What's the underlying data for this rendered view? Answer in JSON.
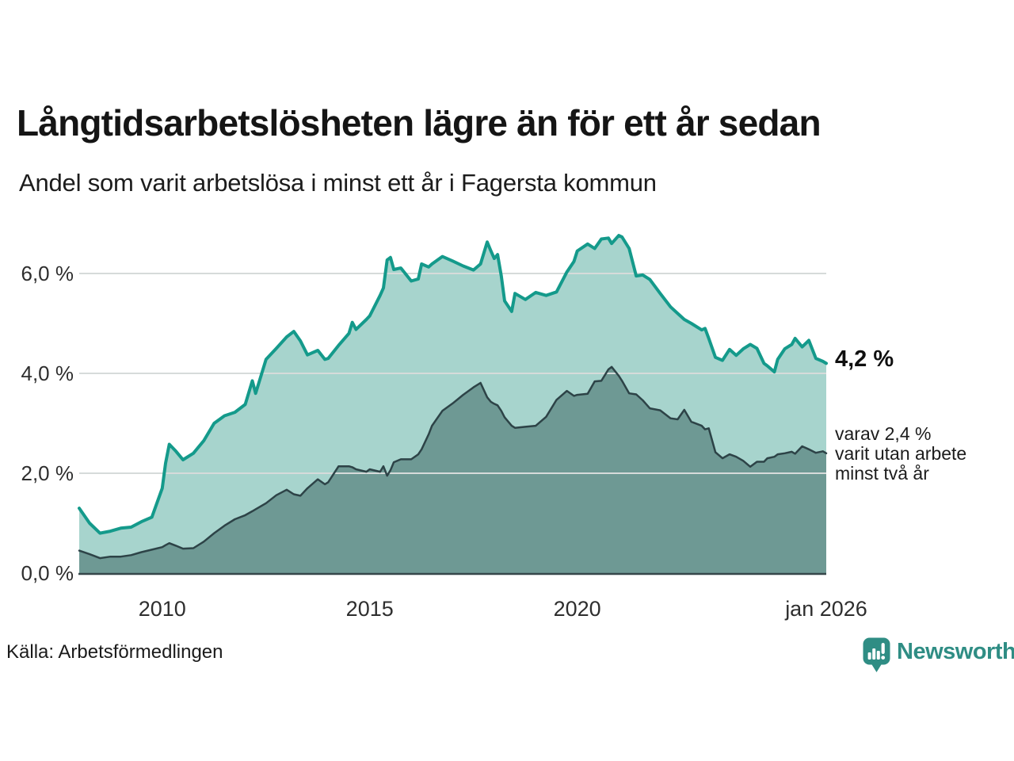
{
  "header": {
    "title": "Långtidsarbetslösheten lägre än för ett år sedan",
    "subtitle": "Andel som varit arbetslösa i minst ett år i Fagersta kommun"
  },
  "annotations": {
    "total_latest": "4,2 %",
    "subset_lines": [
      "varav 2,4 %",
      "varit utan arbete",
      "minst två år"
    ]
  },
  "source": {
    "label": "Källa: Arbetsförmedlingen"
  },
  "branding": {
    "wordmark": "Newsworthy",
    "logo_icon": "bar-chart-speech-bubble-icon",
    "color": "#2f8d84"
  },
  "chart_data": {
    "type": "area",
    "title": "Långtidsarbetslösheten lägre än för ett år sedan",
    "subtitle": "Andel som varit arbetslösa i minst ett år i Fagersta kommun",
    "x_unit": "decimal_year",
    "x_range": [
      2008,
      2026
    ],
    "ylim": [
      0,
      7.2
    ],
    "grid": true,
    "grid_y_values": [
      2,
      4,
      6
    ],
    "legend": "none",
    "y_ticks": [
      {
        "v": 0,
        "label": "0,0 %"
      },
      {
        "v": 2,
        "label": "2,0 %"
      },
      {
        "v": 4,
        "label": "4,0 %"
      },
      {
        "v": 6,
        "label": "6,0 %"
      }
    ],
    "x_ticks": [
      {
        "v": 2010,
        "label": "2010"
      },
      {
        "v": 2015,
        "label": "2015"
      },
      {
        "v": 2020,
        "label": "2020"
      },
      {
        "v": 2026,
        "label": "jan 2026"
      }
    ],
    "x": [
      2008.0,
      2008.25,
      2008.5,
      2008.75,
      2009.0,
      2009.25,
      2009.5,
      2009.75,
      2010.0,
      2010.08,
      2010.17,
      2010.33,
      2010.5,
      2010.75,
      2011.0,
      2011.25,
      2011.5,
      2011.75,
      2012.0,
      2012.17,
      2012.25,
      2012.5,
      2012.75,
      2013.0,
      2013.17,
      2013.33,
      2013.5,
      2013.75,
      2013.92,
      2014.0,
      2014.25,
      2014.5,
      2014.58,
      2014.67,
      2014.92,
      2015.0,
      2015.25,
      2015.33,
      2015.42,
      2015.5,
      2015.58,
      2015.75,
      2016.0,
      2016.17,
      2016.25,
      2016.42,
      2016.5,
      2016.75,
      2017.0,
      2017.25,
      2017.5,
      2017.67,
      2017.83,
      2017.92,
      2018.0,
      2018.08,
      2018.17,
      2018.25,
      2018.42,
      2018.5,
      2018.75,
      2019.0,
      2019.25,
      2019.5,
      2019.75,
      2019.92,
      2020.0,
      2020.25,
      2020.42,
      2020.58,
      2020.75,
      2020.83,
      2021.0,
      2021.08,
      2021.25,
      2021.42,
      2021.58,
      2021.75,
      2022.0,
      2022.25,
      2022.42,
      2022.58,
      2022.75,
      2023.0,
      2023.08,
      2023.17,
      2023.33,
      2023.5,
      2023.67,
      2023.83,
      2024.0,
      2024.17,
      2024.33,
      2024.5,
      2024.58,
      2024.75,
      2024.83,
      2025.0,
      2025.17,
      2025.25,
      2025.42,
      2025.58,
      2025.75,
      2025.92,
      2026.0
    ],
    "series": [
      {
        "name": "Arbetslösa minst ett år",
        "line_color": "#149a8b",
        "fill_color": "#a7d4cd",
        "line_width": 4,
        "end_value": 4.2,
        "end_value_label": "4,2 %",
        "values": [
          1.3,
          1.0,
          0.8,
          0.84,
          0.9,
          0.92,
          1.03,
          1.12,
          1.7,
          2.2,
          2.58,
          2.44,
          2.27,
          2.4,
          2.65,
          3.0,
          3.15,
          3.22,
          3.38,
          3.85,
          3.6,
          4.28,
          4.5,
          4.73,
          4.84,
          4.65,
          4.37,
          4.46,
          4.28,
          4.3,
          4.56,
          4.8,
          5.02,
          4.88,
          5.08,
          5.15,
          5.56,
          5.71,
          6.27,
          6.32,
          6.08,
          6.11,
          5.85,
          5.89,
          6.19,
          6.13,
          6.19,
          6.34,
          6.25,
          6.15,
          6.07,
          6.19,
          6.63,
          6.45,
          6.3,
          6.38,
          5.95,
          5.45,
          5.24,
          5.6,
          5.48,
          5.62,
          5.56,
          5.63,
          6.03,
          6.24,
          6.45,
          6.59,
          6.5,
          6.69,
          6.71,
          6.6,
          6.76,
          6.73,
          6.5,
          5.95,
          5.97,
          5.88,
          5.6,
          5.33,
          5.2,
          5.08,
          5.0,
          4.87,
          4.9,
          4.7,
          4.32,
          4.26,
          4.48,
          4.36,
          4.49,
          4.58,
          4.5,
          4.2,
          4.15,
          4.03,
          4.28,
          4.49,
          4.58,
          4.7,
          4.53,
          4.66,
          4.3,
          4.24,
          4.2
        ]
      },
      {
        "name": "Arbetslösa minst två år",
        "line_color": "#2d4347",
        "fill_color": "#6e9994",
        "line_width": 2.5,
        "end_value": 2.4,
        "end_value_label": "2,4 %",
        "values": [
          0.45,
          0.38,
          0.3,
          0.33,
          0.33,
          0.36,
          0.42,
          0.47,
          0.52,
          0.56,
          0.6,
          0.55,
          0.49,
          0.5,
          0.63,
          0.8,
          0.95,
          1.08,
          1.16,
          1.24,
          1.28,
          1.4,
          1.56,
          1.67,
          1.58,
          1.55,
          1.7,
          1.88,
          1.78,
          1.82,
          2.14,
          2.14,
          2.12,
          2.08,
          2.03,
          2.08,
          2.03,
          2.14,
          1.95,
          2.06,
          2.22,
          2.28,
          2.28,
          2.38,
          2.48,
          2.78,
          2.95,
          3.25,
          3.4,
          3.57,
          3.72,
          3.81,
          3.52,
          3.43,
          3.39,
          3.36,
          3.25,
          3.12,
          2.95,
          2.91,
          2.93,
          2.95,
          3.13,
          3.47,
          3.65,
          3.55,
          3.57,
          3.59,
          3.84,
          3.85,
          4.08,
          4.13,
          3.95,
          3.85,
          3.6,
          3.58,
          3.46,
          3.3,
          3.26,
          3.1,
          3.08,
          3.27,
          3.03,
          2.95,
          2.88,
          2.9,
          2.42,
          2.3,
          2.38,
          2.33,
          2.25,
          2.13,
          2.23,
          2.23,
          2.3,
          2.33,
          2.38,
          2.4,
          2.43,
          2.39,
          2.54,
          2.48,
          2.41,
          2.44,
          2.4
        ]
      }
    ]
  }
}
